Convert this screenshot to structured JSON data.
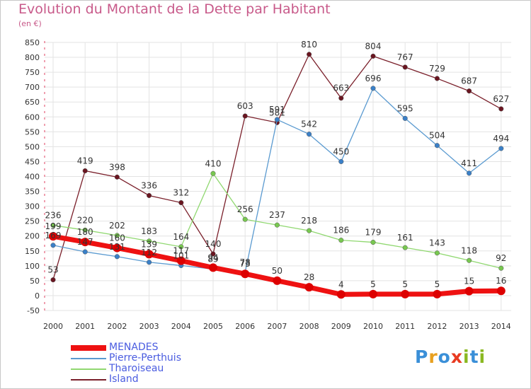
{
  "header": {
    "title": "Evolution du Montant de la Dette par Habitant",
    "subtitle": "(en €)"
  },
  "logo": {
    "text": "Proxiti",
    "colors": [
      "#3a8fd8",
      "#e8a020",
      "#3a8fd8",
      "#e83a20",
      "#8ab820",
      "#3a8fd8",
      "#8ab820"
    ]
  },
  "chart_data": {
    "type": "line",
    "title": "Evolution du Montant de la Dette par Habitant",
    "ylabel": "(en €)",
    "xlabel": "",
    "x": [
      "2000",
      "2001",
      "2002",
      "2003",
      "2004",
      "2005",
      "2006",
      "2007",
      "2008",
      "2009",
      "2010",
      "2011",
      "2012",
      "2013",
      "2014"
    ],
    "ylim": [
      -50,
      850
    ],
    "yticks": [
      "-50",
      "0",
      "50",
      "100",
      "150",
      "200",
      "250",
      "300",
      "350",
      "400",
      "450",
      "500",
      "550",
      "600",
      "650",
      "700",
      "750",
      "800",
      "850"
    ],
    "grid": true,
    "legend": "bottom-left",
    "series": [
      {
        "name": "Island",
        "color": "#7a1f2a",
        "point_color": "#6a1520",
        "values": [
          53,
          419,
          398,
          336,
          312,
          140,
          603,
          581,
          810,
          663,
          804,
          767,
          729,
          687,
          627
        ],
        "labels": [
          "53",
          "419",
          "398",
          "336",
          "312",
          "140",
          "603",
          "581",
          "810",
          "663",
          "804",
          "767",
          "729",
          "687",
          "627"
        ]
      },
      {
        "name": "Pierre-Perthuis",
        "color": "#5a9ad0",
        "point_color": "#3a80c8",
        "values": [
          169,
          147,
          131,
          112,
          101,
          89,
          78,
          591,
          542,
          450,
          696,
          595,
          504,
          411,
          494
        ],
        "labels": [
          "169",
          "147",
          "131",
          "112",
          "101",
          "89",
          "78",
          "591",
          "542",
          "450",
          "696",
          "595",
          "504",
          "411",
          "494"
        ]
      },
      {
        "name": "Tharoiseau",
        "color": "#90d870",
        "point_color": "#78c850",
        "values": [
          236,
          220,
          202,
          183,
          164,
          410,
          256,
          237,
          218,
          186,
          179,
          161,
          143,
          118,
          92
        ],
        "labels": [
          "236",
          "220",
          "202",
          "183",
          "164",
          "410",
          "256",
          "237",
          "218",
          "186",
          "179",
          "161",
          "143",
          "118",
          "92"
        ]
      },
      {
        "name": "MENADES",
        "color": "#ee1111",
        "point_color": "#dd0000",
        "values": [
          199,
          180,
          160,
          139,
          117,
          94,
          73,
          50,
          28,
          4,
          5,
          5,
          5,
          15,
          16
        ],
        "labels": [
          "199",
          "180",
          "160",
          "139",
          "117",
          "94",
          "73",
          "50",
          "28",
          "4",
          "5",
          "5",
          "5",
          "15",
          "16"
        ]
      }
    ],
    "legend_order": [
      "MENADES",
      "Pierre-Perthuis",
      "Tharoiseau",
      "Island"
    ]
  }
}
